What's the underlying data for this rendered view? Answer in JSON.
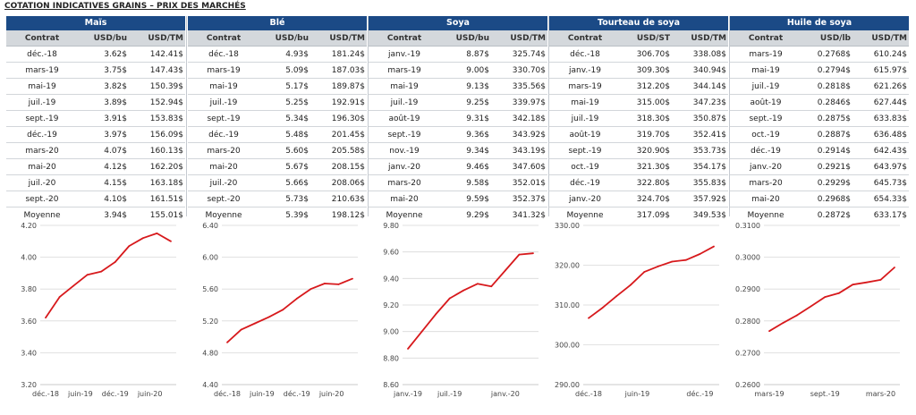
{
  "header_title": "COTATION INDICATIVES GRAINS – PRIX DES MARCHÉS",
  "panels": [
    {
      "name": "Maïs",
      "col1": "Contrat",
      "col2": "USD/bu",
      "col3": "USD/TM",
      "rows": [
        [
          "déc.-18",
          "3.62$",
          "142.41$"
        ],
        [
          "mars-19",
          "3.75$",
          "147.43$"
        ],
        [
          "mai-19",
          "3.82$",
          "150.39$"
        ],
        [
          "juil.-19",
          "3.89$",
          "152.94$"
        ],
        [
          "sept.-19",
          "3.91$",
          "153.83$"
        ],
        [
          "déc.-19",
          "3.97$",
          "156.09$"
        ],
        [
          "mars-20",
          "4.07$",
          "160.13$"
        ],
        [
          "mai-20",
          "4.12$",
          "162.20$"
        ],
        [
          "juil.-20",
          "4.15$",
          "163.18$"
        ],
        [
          "sept.-20",
          "4.10$",
          "161.51$"
        ],
        [
          "Moyenne",
          "3.94$",
          "155.01$"
        ]
      ]
    },
    {
      "name": "Blé",
      "col1": "Contrat",
      "col2": "USD/bu",
      "col3": "USD/TM",
      "rows": [
        [
          "déc.-18",
          "4.93$",
          "181.24$"
        ],
        [
          "mars-19",
          "5.09$",
          "187.03$"
        ],
        [
          "mai-19",
          "5.17$",
          "189.87$"
        ],
        [
          "juil.-19",
          "5.25$",
          "192.91$"
        ],
        [
          "sept.-19",
          "5.34$",
          "196.30$"
        ],
        [
          "déc.-19",
          "5.48$",
          "201.45$"
        ],
        [
          "mars-20",
          "5.60$",
          "205.58$"
        ],
        [
          "mai-20",
          "5.67$",
          "208.15$"
        ],
        [
          "juil.-20",
          "5.66$",
          "208.06$"
        ],
        [
          "sept.-20",
          "5.73$",
          "210.63$"
        ],
        [
          "Moyenne",
          "5.39$",
          "198.12$"
        ]
      ]
    },
    {
      "name": "Soya",
      "col1": "Contrat",
      "col2": "USD/bu",
      "col3": "USD/TM",
      "rows": [
        [
          "janv.-19",
          "8.87$",
          "325.74$"
        ],
        [
          "mars-19",
          "9.00$",
          "330.70$"
        ],
        [
          "mai-19",
          "9.13$",
          "335.56$"
        ],
        [
          "juil.-19",
          "9.25$",
          "339.97$"
        ],
        [
          "août-19",
          "9.31$",
          "342.18$"
        ],
        [
          "sept.-19",
          "9.36$",
          "343.92$"
        ],
        [
          "nov.-19",
          "9.34$",
          "343.19$"
        ],
        [
          "janv.-20",
          "9.46$",
          "347.60$"
        ],
        [
          "mars-20",
          "9.58$",
          "352.01$"
        ],
        [
          "mai-20",
          "9.59$",
          "352.37$"
        ],
        [
          "Moyenne",
          "9.29$",
          "341.32$"
        ]
      ]
    },
    {
      "name": "Tourteau de soya",
      "col1": "Contrat",
      "col2": "USD/ST",
      "col3": "USD/TM",
      "rows": [
        [
          "déc.-18",
          "306.70$",
          "338.08$"
        ],
        [
          "janv.-19",
          "309.30$",
          "340.94$"
        ],
        [
          "mars-19",
          "312.20$",
          "344.14$"
        ],
        [
          "mai-19",
          "315.00$",
          "347.23$"
        ],
        [
          "juil.-19",
          "318.30$",
          "350.87$"
        ],
        [
          "août-19",
          "319.70$",
          "352.41$"
        ],
        [
          "sept.-19",
          "320.90$",
          "353.73$"
        ],
        [
          "oct.-19",
          "321.30$",
          "354.17$"
        ],
        [
          "déc.-19",
          "322.80$",
          "355.83$"
        ],
        [
          "janv.-20",
          "324.70$",
          "357.92$"
        ],
        [
          "Moyenne",
          "317.09$",
          "349.53$"
        ]
      ]
    },
    {
      "name": "Huile de soya",
      "col1": "Contrat",
      "col2": "USD/lb",
      "col3": "USD/TM",
      "rows": [
        [
          "mars-19",
          "0.2768$",
          "610.24$"
        ],
        [
          "mai-19",
          "0.2794$",
          "615.97$"
        ],
        [
          "juil.-19",
          "0.2818$",
          "621.26$"
        ],
        [
          "août-19",
          "0.2846$",
          "627.44$"
        ],
        [
          "sept.-19",
          "0.2875$",
          "633.83$"
        ],
        [
          "oct.-19",
          "0.2887$",
          "636.48$"
        ],
        [
          "déc.-19",
          "0.2914$",
          "642.43$"
        ],
        [
          "janv.-20",
          "0.2921$",
          "643.97$"
        ],
        [
          "mars-20",
          "0.2929$",
          "645.73$"
        ],
        [
          "mai-20",
          "0.2968$",
          "654.33$"
        ],
        [
          "Moyenne",
          "0.2872$",
          "633.17$"
        ]
      ]
    }
  ],
  "chart_data": [
    {
      "type": "line",
      "title": "",
      "xlabel": "",
      "ylabel": "",
      "x": [
        "déc.-18",
        "mars-19",
        "mai-19",
        "juil.-19",
        "sept.-19",
        "déc.-19",
        "mars-20",
        "mai-20",
        "juil.-20",
        "sept.-20"
      ],
      "values": [
        3.62,
        3.75,
        3.82,
        3.89,
        3.91,
        3.97,
        4.07,
        4.12,
        4.15,
        4.1
      ],
      "ylim": [
        3.2,
        4.2
      ],
      "yticks": [
        "3.20",
        "3.40",
        "3.60",
        "3.80",
        "4.00",
        "4.20"
      ],
      "xticklabels": [
        [
          "déc.-18",
          0
        ],
        [
          "juin-19",
          2.5
        ],
        [
          "déc.-19",
          5
        ],
        [
          "juin-20",
          7.5
        ]
      ],
      "color": "#d7191c",
      "grid": true
    },
    {
      "type": "line",
      "title": "",
      "xlabel": "",
      "ylabel": "",
      "x": [
        "déc.-18",
        "mars-19",
        "mai-19",
        "juil.-19",
        "sept.-19",
        "déc.-19",
        "mars-20",
        "mai-20",
        "juil.-20",
        "sept.-20"
      ],
      "values": [
        4.93,
        5.09,
        5.17,
        5.25,
        5.34,
        5.48,
        5.6,
        5.67,
        5.66,
        5.73
      ],
      "ylim": [
        4.4,
        6.4
      ],
      "yticks": [
        "4.40",
        "4.80",
        "5.20",
        "5.60",
        "6.00",
        "6.40"
      ],
      "xticklabels": [
        [
          "déc.-18",
          0
        ],
        [
          "juin-19",
          2.5
        ],
        [
          "déc.-19",
          5
        ],
        [
          "juin-20",
          7.5
        ]
      ],
      "color": "#d7191c",
      "grid": true
    },
    {
      "type": "line",
      "title": "",
      "xlabel": "",
      "ylabel": "",
      "x": [
        "janv.-19",
        "mars-19",
        "mai-19",
        "juil.-19",
        "août-19",
        "sept.-19",
        "nov.-19",
        "janv.-20",
        "mars-20",
        "mai-20"
      ],
      "values": [
        8.87,
        9.0,
        9.13,
        9.25,
        9.31,
        9.36,
        9.34,
        9.46,
        9.58,
        9.59
      ],
      "ylim": [
        8.6,
        9.8
      ],
      "yticks": [
        "8.60",
        "8.80",
        "9.00",
        "9.20",
        "9.40",
        "9.60",
        "9.80"
      ],
      "xticklabels": [
        [
          "janv.-19",
          0
        ],
        [
          "juil.-19",
          3
        ],
        [
          "janv.-20",
          7
        ]
      ],
      "color": "#d7191c",
      "grid": true
    },
    {
      "type": "line",
      "title": "",
      "xlabel": "",
      "ylabel": "",
      "x": [
        "déc.-18",
        "janv.-19",
        "mars-19",
        "mai-19",
        "juil.-19",
        "août-19",
        "sept.-19",
        "oct.-19",
        "déc.-19",
        "janv.-20"
      ],
      "values": [
        306.7,
        309.3,
        312.2,
        315.0,
        318.3,
        319.7,
        320.9,
        321.3,
        322.8,
        324.7
      ],
      "ylim": [
        290,
        330
      ],
      "yticks": [
        "290.00",
        "300.00",
        "310.00",
        "320.00",
        "330.00"
      ],
      "xticklabels": [
        [
          "déc.-18",
          0
        ],
        [
          "juin-19",
          3.5
        ],
        [
          "déc.-19",
          8
        ]
      ],
      "color": "#d7191c",
      "grid": true
    },
    {
      "type": "line",
      "title": "",
      "xlabel": "",
      "ylabel": "",
      "x": [
        "mars-19",
        "mai-19",
        "juil.-19",
        "août-19",
        "sept.-19",
        "oct.-19",
        "déc.-19",
        "janv.-20",
        "mars-20",
        "mai-20"
      ],
      "values": [
        0.2768,
        0.2794,
        0.2818,
        0.2846,
        0.2875,
        0.2887,
        0.2914,
        0.2921,
        0.2929,
        0.2968
      ],
      "ylim": [
        0.26,
        0.31
      ],
      "yticks": [
        "0.2600",
        "0.2700",
        "0.2800",
        "0.2900",
        "0.3000",
        "0.3100"
      ],
      "xticklabels": [
        [
          "mars-19",
          0
        ],
        [
          "sept.-19",
          4
        ],
        [
          "mars-20",
          8
        ]
      ],
      "color": "#d7191c",
      "grid": true
    }
  ]
}
